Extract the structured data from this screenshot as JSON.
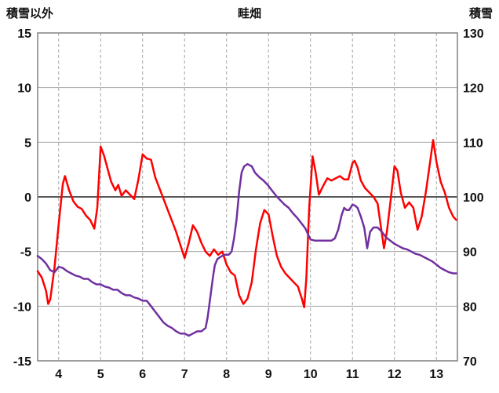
{
  "chart_data": {
    "type": "line",
    "title": "畦畑",
    "left_axis_title": "積雪以外",
    "right_axis_title": "積雪",
    "left_axis": {
      "title": "積雪以外",
      "min": -15,
      "max": 15,
      "ticks": [
        15,
        10,
        5,
        0,
        -5,
        -10,
        -15
      ]
    },
    "right_axis": {
      "title": "積雪",
      "min": 70,
      "max": 130,
      "ticks": [
        130,
        120,
        110,
        100,
        90,
        80,
        70
      ]
    },
    "x_axis": {
      "min": 3.5,
      "max": 13.5,
      "ticks": [
        4,
        5,
        6,
        7,
        8,
        9,
        10,
        11,
        12,
        13
      ]
    },
    "grid": {
      "line_color": "#a6a6a6",
      "zero_line_color": "#595959",
      "frame_color": "#808080",
      "vertical_dashed": true
    },
    "series": [
      {
        "name": "積雪以外",
        "axis": "left",
        "color": "#ff0000",
        "points": [
          [
            3.5,
            -6.8
          ],
          [
            3.6,
            -7.4
          ],
          [
            3.7,
            -8.6
          ],
          [
            3.75,
            -9.8
          ],
          [
            3.8,
            -9.4
          ],
          [
            3.9,
            -6.5
          ],
          [
            4.0,
            -2.5
          ],
          [
            4.1,
            1.2
          ],
          [
            4.15,
            1.9
          ],
          [
            4.25,
            0.6
          ],
          [
            4.35,
            -0.4
          ],
          [
            4.45,
            -0.9
          ],
          [
            4.55,
            -1.1
          ],
          [
            4.65,
            -1.7
          ],
          [
            4.75,
            -2.1
          ],
          [
            4.85,
            -2.9
          ],
          [
            4.92,
            -1.0
          ],
          [
            5.0,
            4.6
          ],
          [
            5.08,
            3.8
          ],
          [
            5.15,
            2.8
          ],
          [
            5.25,
            1.4
          ],
          [
            5.35,
            0.6
          ],
          [
            5.42,
            1.1
          ],
          [
            5.5,
            0.1
          ],
          [
            5.6,
            0.6
          ],
          [
            5.7,
            0.2
          ],
          [
            5.8,
            -0.2
          ],
          [
            5.9,
            1.6
          ],
          [
            6.0,
            3.9
          ],
          [
            6.1,
            3.5
          ],
          [
            6.2,
            3.4
          ],
          [
            6.3,
            1.8
          ],
          [
            6.4,
            0.8
          ],
          [
            6.5,
            -0.2
          ],
          [
            6.6,
            -1.2
          ],
          [
            6.7,
            -2.2
          ],
          [
            6.8,
            -3.2
          ],
          [
            6.9,
            -4.4
          ],
          [
            7.0,
            -5.6
          ],
          [
            7.1,
            -4.2
          ],
          [
            7.2,
            -2.6
          ],
          [
            7.3,
            -3.2
          ],
          [
            7.4,
            -4.2
          ],
          [
            7.5,
            -5.0
          ],
          [
            7.6,
            -5.4
          ],
          [
            7.7,
            -4.8
          ],
          [
            7.8,
            -5.3
          ],
          [
            7.9,
            -5.0
          ],
          [
            8.0,
            -6.2
          ],
          [
            8.1,
            -6.9
          ],
          [
            8.2,
            -7.2
          ],
          [
            8.3,
            -9.0
          ],
          [
            8.4,
            -9.8
          ],
          [
            8.5,
            -9.3
          ],
          [
            8.6,
            -7.8
          ],
          [
            8.7,
            -4.8
          ],
          [
            8.8,
            -2.4
          ],
          [
            8.9,
            -1.2
          ],
          [
            9.0,
            -1.6
          ],
          [
            9.1,
            -3.6
          ],
          [
            9.2,
            -5.4
          ],
          [
            9.3,
            -6.4
          ],
          [
            9.4,
            -7.0
          ],
          [
            9.5,
            -7.4
          ],
          [
            9.6,
            -7.8
          ],
          [
            9.7,
            -8.2
          ],
          [
            9.8,
            -9.4
          ],
          [
            9.85,
            -10.1
          ],
          [
            9.9,
            -7.5
          ],
          [
            9.97,
            -1.0
          ],
          [
            10.05,
            3.7
          ],
          [
            10.12,
            2.3
          ],
          [
            10.2,
            0.2
          ],
          [
            10.3,
            1.0
          ],
          [
            10.4,
            1.7
          ],
          [
            10.5,
            1.5
          ],
          [
            10.6,
            1.7
          ],
          [
            10.7,
            1.9
          ],
          [
            10.8,
            1.6
          ],
          [
            10.9,
            1.6
          ],
          [
            11.0,
            3.1
          ],
          [
            11.05,
            3.3
          ],
          [
            11.12,
            2.7
          ],
          [
            11.2,
            1.5
          ],
          [
            11.3,
            0.8
          ],
          [
            11.4,
            0.4
          ],
          [
            11.5,
            0.0
          ],
          [
            11.6,
            -0.6
          ],
          [
            11.68,
            -2.8
          ],
          [
            11.75,
            -4.7
          ],
          [
            11.82,
            -3.2
          ],
          [
            11.9,
            -0.6
          ],
          [
            12.0,
            2.8
          ],
          [
            12.07,
            2.4
          ],
          [
            12.15,
            0.4
          ],
          [
            12.25,
            -1.0
          ],
          [
            12.35,
            -0.5
          ],
          [
            12.45,
            -1.0
          ],
          [
            12.55,
            -3.0
          ],
          [
            12.65,
            -1.8
          ],
          [
            12.75,
            0.5
          ],
          [
            12.85,
            3.2
          ],
          [
            12.92,
            5.2
          ],
          [
            13.0,
            3.2
          ],
          [
            13.1,
            1.4
          ],
          [
            13.2,
            0.4
          ],
          [
            13.3,
            -1.0
          ],
          [
            13.4,
            -1.8
          ],
          [
            13.47,
            -2.1
          ]
        ]
      },
      {
        "name": "積雪",
        "axis": "right",
        "color": "#7030a0",
        "points": [
          [
            3.5,
            89.2
          ],
          [
            3.6,
            88.6
          ],
          [
            3.7,
            87.8
          ],
          [
            3.8,
            86.6
          ],
          [
            3.9,
            86.2
          ],
          [
            4.0,
            87.2
          ],
          [
            4.1,
            87.0
          ],
          [
            4.2,
            86.4
          ],
          [
            4.3,
            86.0
          ],
          [
            4.4,
            85.6
          ],
          [
            4.5,
            85.4
          ],
          [
            4.6,
            85.0
          ],
          [
            4.7,
            85.0
          ],
          [
            4.8,
            84.4
          ],
          [
            4.9,
            84.0
          ],
          [
            5.0,
            84.0
          ],
          [
            5.1,
            83.6
          ],
          [
            5.2,
            83.4
          ],
          [
            5.3,
            83.0
          ],
          [
            5.4,
            83.0
          ],
          [
            5.5,
            82.4
          ],
          [
            5.6,
            82.0
          ],
          [
            5.7,
            82.0
          ],
          [
            5.8,
            81.6
          ],
          [
            5.9,
            81.4
          ],
          [
            6.0,
            81.0
          ],
          [
            6.1,
            81.0
          ],
          [
            6.2,
            80.0
          ],
          [
            6.3,
            79.0
          ],
          [
            6.4,
            78.0
          ],
          [
            6.5,
            77.0
          ],
          [
            6.6,
            76.4
          ],
          [
            6.7,
            76.0
          ],
          [
            6.8,
            75.4
          ],
          [
            6.9,
            75.0
          ],
          [
            7.0,
            75.0
          ],
          [
            7.1,
            74.6
          ],
          [
            7.2,
            75.0
          ],
          [
            7.3,
            75.4
          ],
          [
            7.4,
            75.4
          ],
          [
            7.5,
            76.0
          ],
          [
            7.55,
            78.0
          ],
          [
            7.62,
            82.0
          ],
          [
            7.68,
            85.5
          ],
          [
            7.72,
            87.5
          ],
          [
            7.78,
            88.6
          ],
          [
            7.85,
            89.0
          ],
          [
            7.95,
            89.4
          ],
          [
            8.05,
            89.4
          ],
          [
            8.12,
            90.0
          ],
          [
            8.18,
            92.5
          ],
          [
            8.24,
            96.0
          ],
          [
            8.3,
            101.0
          ],
          [
            8.36,
            104.5
          ],
          [
            8.42,
            105.6
          ],
          [
            8.5,
            106.0
          ],
          [
            8.6,
            105.6
          ],
          [
            8.68,
            104.4
          ],
          [
            8.78,
            103.6
          ],
          [
            8.88,
            103.0
          ],
          [
            8.98,
            102.2
          ],
          [
            9.08,
            101.2
          ],
          [
            9.18,
            100.2
          ],
          [
            9.28,
            99.4
          ],
          [
            9.38,
            98.6
          ],
          [
            9.48,
            98.0
          ],
          [
            9.58,
            97.0
          ],
          [
            9.68,
            96.2
          ],
          [
            9.78,
            95.2
          ],
          [
            9.88,
            94.2
          ],
          [
            9.95,
            93.0
          ],
          [
            10.0,
            92.2
          ],
          [
            10.1,
            92.0
          ],
          [
            10.2,
            92.0
          ],
          [
            10.3,
            92.0
          ],
          [
            10.4,
            92.0
          ],
          [
            10.5,
            92.0
          ],
          [
            10.58,
            92.4
          ],
          [
            10.66,
            94.0
          ],
          [
            10.74,
            96.6
          ],
          [
            10.8,
            98.0
          ],
          [
            10.86,
            97.6
          ],
          [
            10.92,
            97.6
          ],
          [
            11.0,
            98.6
          ],
          [
            11.06,
            98.4
          ],
          [
            11.12,
            98.0
          ],
          [
            11.2,
            96.4
          ],
          [
            11.28,
            94.4
          ],
          [
            11.35,
            90.6
          ],
          [
            11.42,
            93.6
          ],
          [
            11.5,
            94.4
          ],
          [
            11.6,
            94.4
          ],
          [
            11.7,
            93.6
          ],
          [
            11.8,
            92.6
          ],
          [
            11.9,
            92.0
          ],
          [
            12.0,
            91.4
          ],
          [
            12.1,
            91.0
          ],
          [
            12.2,
            90.6
          ],
          [
            12.3,
            90.4
          ],
          [
            12.4,
            90.0
          ],
          [
            12.5,
            89.6
          ],
          [
            12.6,
            89.4
          ],
          [
            12.7,
            89.0
          ],
          [
            12.8,
            88.6
          ],
          [
            12.9,
            88.2
          ],
          [
            13.0,
            87.6
          ],
          [
            13.1,
            87.0
          ],
          [
            13.2,
            86.6
          ],
          [
            13.3,
            86.2
          ],
          [
            13.4,
            86.0
          ],
          [
            13.47,
            86.0
          ]
        ]
      }
    ],
    "legend": "none",
    "grid_on": true
  }
}
